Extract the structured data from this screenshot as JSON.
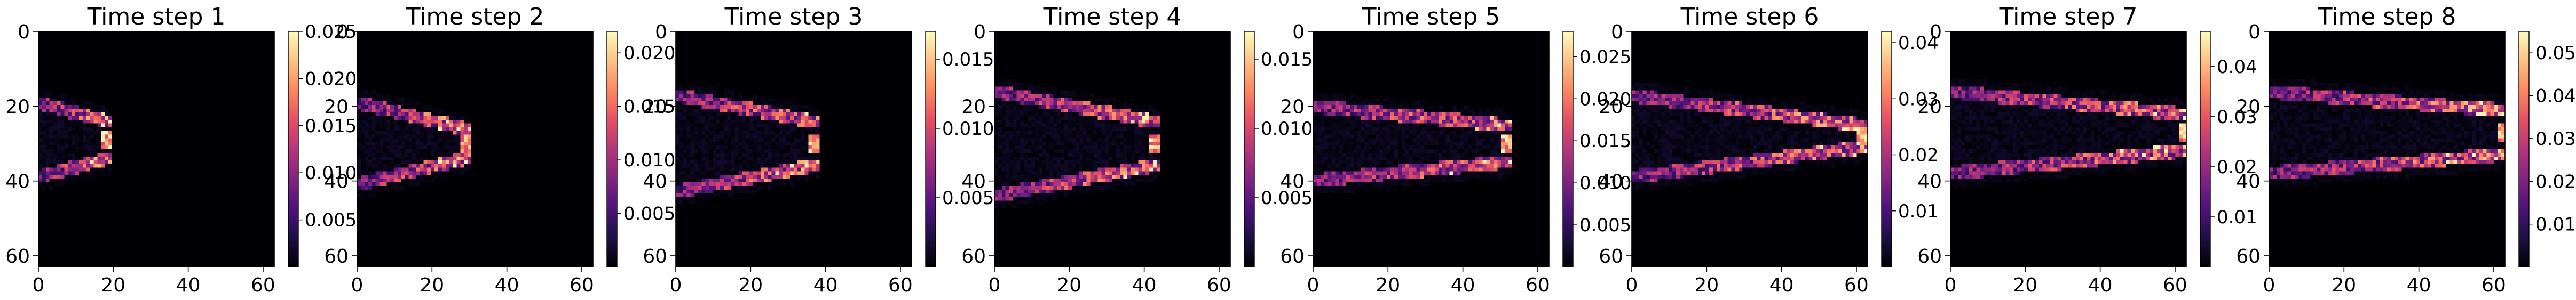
{
  "figure": {
    "colormap": "magma",
    "colormap_stops": [
      "#000004",
      "#1c1044",
      "#4f127b",
      "#812581",
      "#b5367a",
      "#e55064",
      "#fb8761",
      "#fec287",
      "#fcfdbf"
    ]
  },
  "chart_data": [
    {
      "type": "heatmap",
      "title": "Time step 1",
      "xlim": [
        0,
        63
      ],
      "ylim": [
        63,
        0
      ],
      "xticks": [
        "0",
        "20",
        "40",
        "60"
      ],
      "yticks": [
        "0",
        "20",
        "40",
        "60"
      ],
      "colorbar": {
        "vmin": 0,
        "vmax": 0.025,
        "ticks": [
          "0.005",
          "0.010",
          "0.015",
          "0.020",
          "0.025"
        ]
      },
      "structure": {
        "y_center": 29,
        "front_x": 18,
        "width_at_front": 5,
        "width_at_base": 10,
        "peak": 0.025
      }
    },
    {
      "type": "heatmap",
      "title": "Time step 2",
      "xlim": [
        0,
        63
      ],
      "ylim": [
        63,
        0
      ],
      "xticks": [
        "0",
        "20",
        "40",
        "60"
      ],
      "yticks": [
        "0",
        "20",
        "40",
        "60"
      ],
      "colorbar": {
        "vmin": 0,
        "vmax": 0.022,
        "ticks": [
          "0.005",
          "0.010",
          "0.015",
          "0.020"
        ]
      },
      "structure": {
        "y_center": 30,
        "front_x": 29,
        "width_at_front": 4,
        "width_at_base": 11,
        "peak": 0.02
      }
    },
    {
      "type": "heatmap",
      "title": "Time step 3",
      "xlim": [
        0,
        63
      ],
      "ylim": [
        63,
        0
      ],
      "xticks": [
        "0",
        "20",
        "40",
        "60"
      ],
      "yticks": [
        "0",
        "20",
        "40",
        "60"
      ],
      "colorbar": {
        "vmin": 0,
        "vmax": 0.017,
        "ticks": [
          "0.005",
          "0.010",
          "0.015"
        ]
      },
      "structure": {
        "y_center": 30,
        "front_x": 37,
        "width_at_front": 6,
        "width_at_base": 13,
        "peak": 0.017
      }
    },
    {
      "type": "heatmap",
      "title": "Time step 4",
      "xlim": [
        0,
        63
      ],
      "ylim": [
        63,
        0
      ],
      "xticks": [
        "0",
        "20",
        "40",
        "60"
      ],
      "yticks": [
        "0",
        "20",
        "40",
        "60"
      ],
      "colorbar": {
        "vmin": 0,
        "vmax": 0.017,
        "ticks": [
          "0.005",
          "0.010",
          "0.015"
        ]
      },
      "structure": {
        "y_center": 30,
        "front_x": 43,
        "width_at_front": 6,
        "width_at_base": 14,
        "peak": 0.017
      }
    },
    {
      "type": "heatmap",
      "title": "Time step 5",
      "xlim": [
        0,
        63
      ],
      "ylim": [
        63,
        0
      ],
      "xticks": [
        "0",
        "20",
        "40",
        "60"
      ],
      "yticks": [
        "0",
        "20",
        "40",
        "60"
      ],
      "colorbar": {
        "vmin": 0,
        "vmax": 0.028,
        "ticks": [
          "0.005",
          "0.010",
          "0.015",
          "0.020",
          "0.025"
        ]
      },
      "structure": {
        "y_center": 30,
        "front_x": 52,
        "width_at_front": 5,
        "width_at_base": 10,
        "peak": 0.028
      }
    },
    {
      "type": "heatmap",
      "title": "Time step 6",
      "xlim": [
        0,
        63
      ],
      "ylim": [
        63,
        0
      ],
      "xticks": [
        "0",
        "20",
        "40",
        "60"
      ],
      "yticks": [
        "0",
        "20",
        "40",
        "60"
      ],
      "colorbar": {
        "vmin": 0,
        "vmax": 0.042,
        "ticks": [
          "0.01",
          "0.02",
          "0.03",
          "0.04"
        ]
      },
      "structure": {
        "y_center": 28,
        "front_x": 62,
        "width_at_front": 3,
        "width_at_base": 11,
        "peak": 0.042
      }
    },
    {
      "type": "heatmap",
      "title": "Time step 7",
      "xlim": [
        0,
        63
      ],
      "ylim": [
        63,
        0
      ],
      "xticks": [
        "0",
        "20",
        "40",
        "60"
      ],
      "yticks": [
        "0",
        "20",
        "40",
        "60"
      ],
      "colorbar": {
        "vmin": 0,
        "vmax": 0.047,
        "ticks": [
          "0.01",
          "0.02",
          "0.03",
          "0.04"
        ]
      },
      "structure": {
        "y_center": 27,
        "front_x": 63,
        "width_at_front": 5,
        "width_at_base": 11,
        "peak": 0.047
      }
    },
    {
      "type": "heatmap",
      "title": "Time step 8",
      "xlim": [
        0,
        63
      ],
      "ylim": [
        63,
        0
      ],
      "xticks": [
        "0",
        "20",
        "40",
        "60"
      ],
      "yticks": [
        "0",
        "20",
        "40",
        "60"
      ],
      "colorbar": {
        "vmin": 0,
        "vmax": 0.055,
        "ticks": [
          "0.01",
          "0.02",
          "0.03",
          "0.04",
          "0.05"
        ]
      },
      "structure": {
        "y_center": 27,
        "front_x": 63,
        "width_at_front": 6,
        "width_at_base": 11,
        "peak": 0.055
      }
    }
  ]
}
